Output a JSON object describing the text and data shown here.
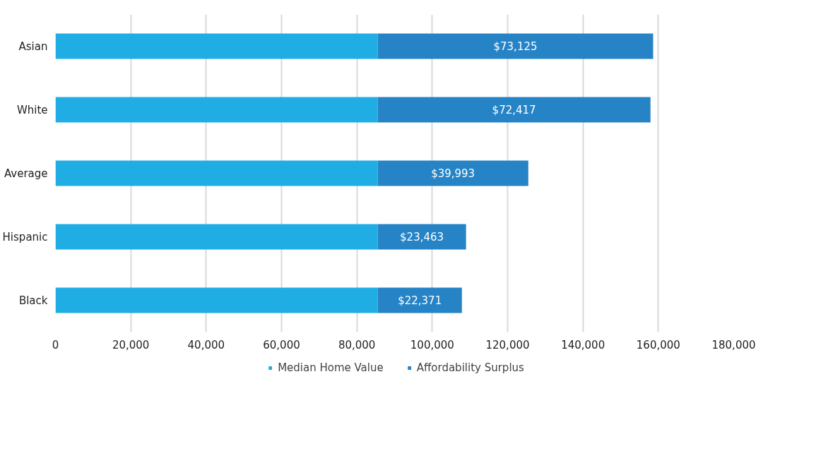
{
  "chart_data": {
    "type": "bar",
    "orientation": "horizontal",
    "stacked": true,
    "categories": [
      "Asian",
      "White",
      "Average",
      "Hispanic",
      "Black"
    ],
    "series": [
      {
        "name": "Median Home Value",
        "color": "#1fade4",
        "values": [
          85500,
          85500,
          85500,
          85500,
          85500
        ]
      },
      {
        "name": "Affordability Surplus",
        "color": "#2683c6",
        "values": [
          73125,
          72417,
          39993,
          23463,
          22371
        ],
        "value_labels": [
          "$73,125",
          "$72,417",
          "$39,993",
          "$23,463",
          "$22,371"
        ]
      }
    ],
    "xlim": [
      0,
      180000
    ],
    "xticks": [
      0,
      {
        "value": 20000,
        "label": "20,000"
      },
      {
        "value": 40000,
        "label": "40,000"
      },
      {
        "value": 60000,
        "label": "60,000"
      },
      {
        "value": 80000,
        "label": "80,000"
      },
      {
        "value": 100000,
        "label": "100,000"
      },
      {
        "value": 120000,
        "label": "120,000"
      },
      {
        "value": 140000,
        "label": "140,000"
      },
      {
        "value": 160000,
        "label": "160,000"
      },
      {
        "value": 180000,
        "label": "180,000"
      }
    ],
    "grid": "x",
    "legend": "bottom"
  }
}
